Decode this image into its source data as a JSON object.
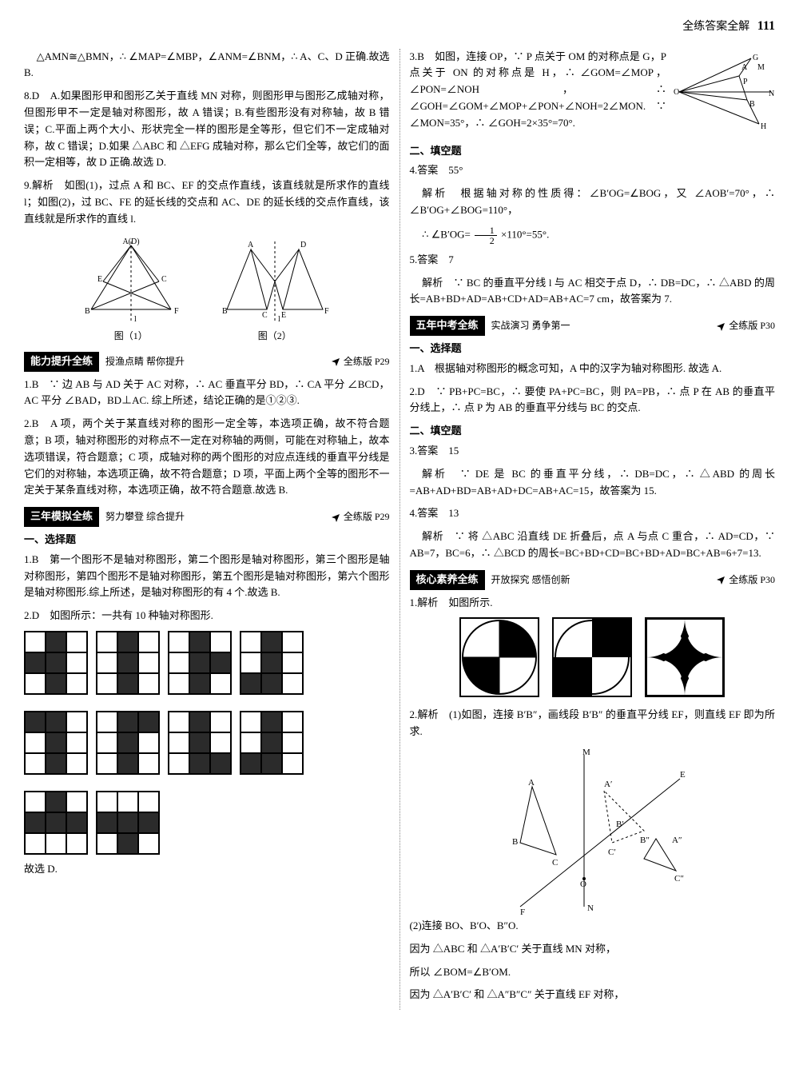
{
  "header": {
    "title": "全练答案全解",
    "page": "111"
  },
  "left": {
    "p1": "△AMN≅△BMN，∴ ∠MAP=∠MBP，∠ANM=∠BNM，∴ A、C、D 正确.故选 B.",
    "q8": "8.D　A.如果图形甲和图形乙关于直线 MN 对称，则图形甲与图形乙成轴对称，但图形甲不一定是轴对称图形，故 A 错误；B.有些图形没有对称轴，故 B 错误；C.平面上两个大小、形状完全一样的图形是全等形，但它们不一定成轴对称，故 C 错误；D.如果 △ABC 和 △EFG 成轴对称，那么它们全等，故它们的面积一定相等，故 D 正确.故选 D.",
    "q9": "9.解析　如图(1)，过点 A 和 BC、EF 的交点作直线，该直线就是所求作的直线 l；如图(2)，过 BC、FE 的延长线的交点和 AC、DE 的延长线的交点作直线，该直线就是所求作的直线 l.",
    "fig1": "图（1）",
    "fig2": "图（2）",
    "banner1": {
      "title": "能力提升全练",
      "sub": "授渔点睛 帮你提升",
      "ref": "全练版 P29"
    },
    "b1_q1": "1.B　∵ 边 AB 与 AD 关于 AC 对称，∴ AC 垂直平分 BD，∴ CA 平分 ∠BCD，AC 平分 ∠BAD，BD⊥AC. 综上所述，结论正确的是①②③.",
    "b1_q2": "2.B　A 项，两个关于某直线对称的图形一定全等，本选项正确，故不符合题意；B 项，轴对称图形的对称点不一定在对称轴的两侧，可能在对称轴上，故本选项错误，符合题意；C 项，成轴对称的两个图形的对应点连线的垂直平分线是它们的对称轴，本选项正确，故不符合题意；D 项，平面上两个全等的图形不一定关于某条直线对称，本选项正确，故不符合题意.故选 B.",
    "banner2": {
      "title": "三年模拟全练",
      "sub": "努力攀登 综合提升",
      "ref": "全练版 P29"
    },
    "b2_h1": "一、选择题",
    "b2_q1": "1.B　第一个图形不是轴对称图形，第二个图形是轴对称图形，第三个图形是轴对称图形，第四个图形不是轴对称图形，第五个图形是轴对称图形，第六个图形是轴对称图形.综上所述，是轴对称图形的有 4 个.故选 B.",
    "b2_q2": "2.D　如图所示：一共有 10 种轴对称图形.",
    "b2_end": "故选 D.",
    "grids": [
      [
        "w",
        "k",
        "w",
        "k",
        "k",
        "w",
        "w",
        "k",
        "w"
      ],
      [
        "w",
        "k",
        "w",
        "w",
        "k",
        "w",
        "w",
        "k",
        "w"
      ],
      [
        "w",
        "k",
        "w",
        "w",
        "k",
        "k",
        "w",
        "k",
        "w"
      ],
      [
        "w",
        "k",
        "w",
        "w",
        "k",
        "w",
        "k",
        "k",
        "w"
      ],
      [
        "k",
        "k",
        "w",
        "w",
        "k",
        "w",
        "w",
        "k",
        "w"
      ],
      [
        "w",
        "k",
        "k",
        "w",
        "k",
        "w",
        "w",
        "k",
        "w"
      ],
      [
        "w",
        "k",
        "w",
        "w",
        "k",
        "w",
        "w",
        "k",
        "k"
      ],
      [
        "w",
        "k",
        "w",
        "w",
        "k",
        "w",
        "k",
        "k",
        "w"
      ],
      [
        "w",
        "k",
        "w",
        "k",
        "k",
        "k",
        "w",
        "w",
        "w"
      ],
      [
        "w",
        "w",
        "w",
        "k",
        "k",
        "k",
        "w",
        "k",
        "w"
      ]
    ]
  },
  "right": {
    "q3": "3.B　如图，连接 OP，∵ P 点关于 OM 的对称点是 G，P 点关于 ON 的对称点是 H，∴ ∠GOM=∠MOP，∠PON=∠NOH，∴ ∠GOH=∠GOM+∠MOP+∠PON+∠NOH=2∠MON. ∵ ∠MON=35°，∴ ∠GOH=2×35°=70°.",
    "h_fill": "二、填空题",
    "q4a": "4.答案　55°",
    "q4b": "解析　根据轴对称的性质得：∠B′OG=∠BOG，又 ∠AOB′=70°，∴ ∠B′OG+∠BOG=110°，",
    "q4c_pre": "∴ ∠B′OG=",
    "q4c_post": "×110°=55°.",
    "frac_num": "1",
    "frac_den": "2",
    "q5a": "5.答案　7",
    "q5b": "解析　∵ BC 的垂直平分线 l 与 AC 相交于点 D，∴ DB=DC，∴ △ABD 的周长=AB+BD+AD=AB+CD+AD=AB+AC=7 cm，故答案为 7.",
    "banner3": {
      "title": "五年中考全练",
      "sub": "实战演习 勇争第一",
      "ref": "全练版 P30"
    },
    "b3_h1": "一、选择题",
    "b3_q1": "1.A　根据轴对称图形的概念可知，A 中的汉字为轴对称图形. 故选 A.",
    "b3_q2": "2.D　∵ PB+PC=BC，∴ 要使 PA+PC=BC，则 PA=PB，∴ 点 P 在 AB 的垂直平分线上，∴ 点 P 为 AB 的垂直平分线与 BC 的交点.",
    "b3_h2": "二、填空题",
    "b3_q3a": "3.答案　15",
    "b3_q3b": "解析　∵ DE 是 BC 的垂直平分线，∴ DB=DC，∴ △ABD 的周长=AB+AD+BD=AB+AD+DC=AB+AC=15，故答案为 15.",
    "b3_q4a": "4.答案　13",
    "b3_q4b": "解析　∵ 将 △ABC 沿直线 DE 折叠后，点 A 与点 C 重合，∴ AD=CD，∵ AB=7，BC=6，∴ △BCD 的周长=BC+BD+CD=BC+BD+AD=BC+AB=6+7=13.",
    "banner4": {
      "title": "核心素养全练",
      "sub": "开放探究 感悟创新",
      "ref": "全练版 P30"
    },
    "b4_q1": "1.解析　如图所示.",
    "b4_q2a": "2.解析　(1)如图，连接 B′B″，画线段 B′B″ 的垂直平分线 EF，则直线 EF 即为所求.",
    "b4_q2b": "(2)连接 BO、B′O、B″O.",
    "b4_q2c": "因为 △ABC 和 △A′B′C′ 关于直线 MN 对称，",
    "b4_q2d": "所以 ∠BOM=∠B′OM.",
    "b4_q2e": "因为 △A′B′C′ 和 △A″B″C″ 关于直线 EF 对称，"
  },
  "colors": {
    "ink": "#000000",
    "bg": "#ffffff",
    "dash": "#888888"
  }
}
